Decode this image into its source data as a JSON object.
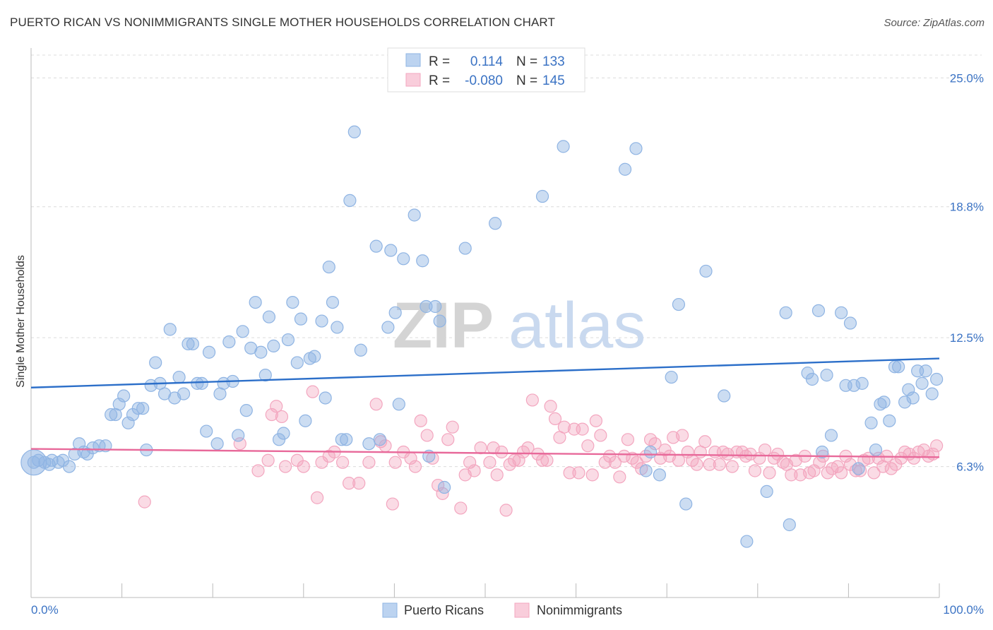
{
  "header": {
    "title": "PUERTO RICAN VS NONIMMIGRANTS SINGLE MOTHER HOUSEHOLDS CORRELATION CHART",
    "source": "Source: ZipAtlas.com"
  },
  "watermark": {
    "zip": "ZIP",
    "atlas": "atlas"
  },
  "chart_data": {
    "type": "scatter",
    "title": "PUERTO RICAN VS NONIMMIGRANTS SINGLE MOTHER HOUSEHOLDS CORRELATION CHART",
    "xlabel": "",
    "ylabel": "Single Mother Households",
    "xlim": [
      0,
      100
    ],
    "ylim": [
      0,
      26.3
    ],
    "x_tick_labels": {
      "min": "0.0%",
      "max": "100.0%"
    },
    "y_ticks": [
      {
        "value": 6.3,
        "label": "6.3%"
      },
      {
        "value": 12.5,
        "label": "12.5%"
      },
      {
        "value": 18.8,
        "label": "18.8%"
      },
      {
        "value": 25.0,
        "label": "25.0%"
      }
    ],
    "grid": true,
    "legend_position": "top-center",
    "series": [
      {
        "name": "Puerto Ricans",
        "color": "#8fb4e3",
        "line_color": "#2c6fc9",
        "R": "0.114",
        "N": "133",
        "trend": {
          "x": [
            0,
            100
          ],
          "y": [
            10.1,
            11.5
          ]
        },
        "points": [
          [
            0.3,
            6.5
          ],
          [
            0.8,
            6.6
          ],
          [
            1.5,
            6.5
          ],
          [
            2.0,
            6.4
          ],
          [
            2.3,
            6.6
          ],
          [
            3.0,
            6.5
          ],
          [
            3.5,
            6.6
          ],
          [
            4.2,
            6.3
          ],
          [
            4.8,
            6.9
          ],
          [
            5.3,
            7.4
          ],
          [
            5.8,
            7.0
          ],
          [
            6.2,
            6.9
          ],
          [
            6.8,
            7.2
          ],
          [
            7.5,
            7.3
          ],
          [
            8.2,
            7.3
          ],
          [
            8.8,
            8.8
          ],
          [
            9.3,
            8.8
          ],
          [
            9.7,
            9.3
          ],
          [
            10.2,
            9.7
          ],
          [
            10.7,
            8.4
          ],
          [
            11.2,
            8.8
          ],
          [
            11.8,
            9.1
          ],
          [
            12.3,
            9.1
          ],
          [
            12.7,
            7.1
          ],
          [
            13.2,
            10.2
          ],
          [
            13.7,
            11.3
          ],
          [
            14.2,
            10.3
          ],
          [
            14.7,
            9.8
          ],
          [
            15.3,
            12.9
          ],
          [
            15.8,
            9.6
          ],
          [
            16.3,
            10.6
          ],
          [
            16.8,
            9.8
          ],
          [
            17.3,
            12.2
          ],
          [
            17.8,
            12.2
          ],
          [
            18.3,
            10.3
          ],
          [
            18.8,
            10.3
          ],
          [
            19.3,
            8.0
          ],
          [
            19.6,
            11.8
          ],
          [
            20.5,
            7.4
          ],
          [
            20.8,
            9.8
          ],
          [
            21.2,
            10.3
          ],
          [
            21.8,
            12.3
          ],
          [
            22.2,
            10.4
          ],
          [
            22.8,
            7.8
          ],
          [
            23.3,
            12.8
          ],
          [
            23.7,
            9.0
          ],
          [
            24.2,
            12.0
          ],
          [
            24.7,
            14.2
          ],
          [
            25.3,
            11.8
          ],
          [
            25.8,
            10.7
          ],
          [
            26.2,
            13.5
          ],
          [
            26.7,
            12.1
          ],
          [
            27.3,
            7.6
          ],
          [
            27.8,
            7.9
          ],
          [
            28.3,
            12.4
          ],
          [
            28.8,
            14.2
          ],
          [
            29.3,
            11.3
          ],
          [
            29.7,
            13.4
          ],
          [
            30.2,
            8.5
          ],
          [
            30.7,
            11.5
          ],
          [
            31.2,
            11.6
          ],
          [
            32.0,
            13.3
          ],
          [
            32.4,
            9.6
          ],
          [
            32.8,
            15.9
          ],
          [
            33.2,
            14.2
          ],
          [
            33.7,
            13.0
          ],
          [
            34.2,
            7.6
          ],
          [
            34.7,
            7.6
          ],
          [
            35.1,
            19.1
          ],
          [
            35.6,
            22.4
          ],
          [
            36.3,
            11.9
          ],
          [
            37.2,
            7.4
          ],
          [
            38.0,
            16.9
          ],
          [
            38.4,
            7.6
          ],
          [
            39.3,
            13.0
          ],
          [
            39.6,
            16.7
          ],
          [
            40.1,
            13.7
          ],
          [
            40.5,
            9.3
          ],
          [
            41.0,
            16.3
          ],
          [
            42.2,
            18.4
          ],
          [
            43.1,
            16.2
          ],
          [
            43.5,
            14.0
          ],
          [
            43.8,
            6.8
          ],
          [
            44.5,
            14.0
          ],
          [
            45.0,
            13.3
          ],
          [
            45.5,
            5.3
          ],
          [
            47.8,
            16.8
          ],
          [
            51.1,
            18.0
          ],
          [
            56.3,
            19.3
          ],
          [
            58.6,
            21.7
          ],
          [
            65.4,
            20.6
          ],
          [
            66.6,
            21.6
          ],
          [
            67.7,
            6.1
          ],
          [
            68.2,
            7.0
          ],
          [
            69.2,
            5.9
          ],
          [
            70.5,
            10.6
          ],
          [
            71.3,
            14.1
          ],
          [
            72.1,
            4.5
          ],
          [
            74.3,
            15.7
          ],
          [
            76.3,
            9.7
          ],
          [
            78.8,
            2.7
          ],
          [
            81.0,
            5.1
          ],
          [
            83.1,
            13.7
          ],
          [
            83.5,
            3.5
          ],
          [
            85.5,
            10.8
          ],
          [
            86.0,
            10.5
          ],
          [
            86.7,
            13.8
          ],
          [
            87.1,
            7.0
          ],
          [
            87.6,
            10.7
          ],
          [
            88.1,
            7.8
          ],
          [
            89.2,
            13.7
          ],
          [
            89.7,
            10.2
          ],
          [
            90.2,
            13.2
          ],
          [
            90.6,
            10.2
          ],
          [
            91.1,
            6.2
          ],
          [
            91.5,
            10.3
          ],
          [
            92.5,
            8.4
          ],
          [
            93.0,
            7.1
          ],
          [
            93.5,
            9.3
          ],
          [
            93.9,
            9.4
          ],
          [
            94.5,
            8.5
          ],
          [
            95.1,
            11.1
          ],
          [
            95.5,
            11.1
          ],
          [
            96.2,
            9.4
          ],
          [
            96.6,
            10.0
          ],
          [
            97.1,
            9.6
          ],
          [
            97.6,
            10.9
          ],
          [
            98.1,
            10.3
          ],
          [
            98.5,
            10.9
          ],
          [
            99.2,
            9.8
          ],
          [
            99.7,
            10.5
          ]
        ]
      },
      {
        "name": "Nonimmigrants",
        "color": "#f3a6bf",
        "line_color": "#e8699a",
        "R": "-0.080",
        "N": "145",
        "trend": {
          "x": [
            0,
            100
          ],
          "y": [
            7.15,
            6.75
          ]
        },
        "points": [
          [
            12.5,
            4.6
          ],
          [
            23.0,
            7.4
          ],
          [
            25.0,
            6.1
          ],
          [
            26.1,
            6.6
          ],
          [
            26.5,
            8.8
          ],
          [
            27.0,
            9.2
          ],
          [
            27.6,
            8.7
          ],
          [
            28.0,
            6.3
          ],
          [
            29.3,
            6.6
          ],
          [
            30.0,
            6.3
          ],
          [
            31.0,
            9.9
          ],
          [
            31.5,
            4.8
          ],
          [
            32.0,
            6.5
          ],
          [
            32.8,
            6.8
          ],
          [
            33.4,
            7.0
          ],
          [
            34.3,
            6.5
          ],
          [
            35.0,
            5.5
          ],
          [
            36.1,
            5.5
          ],
          [
            37.2,
            6.5
          ],
          [
            38.0,
            9.3
          ],
          [
            38.5,
            7.5
          ],
          [
            39.0,
            7.3
          ],
          [
            39.8,
            4.5
          ],
          [
            40.1,
            6.5
          ],
          [
            41.0,
            7.0
          ],
          [
            41.8,
            6.7
          ],
          [
            42.3,
            6.3
          ],
          [
            42.9,
            8.5
          ],
          [
            43.6,
            7.8
          ],
          [
            44.2,
            6.7
          ],
          [
            44.8,
            5.4
          ],
          [
            45.3,
            5.0
          ],
          [
            45.9,
            7.6
          ],
          [
            46.4,
            8.2
          ],
          [
            47.3,
            4.3
          ],
          [
            47.8,
            5.9
          ],
          [
            48.3,
            6.5
          ],
          [
            48.8,
            6.1
          ],
          [
            49.5,
            7.2
          ],
          [
            50.5,
            6.5
          ],
          [
            50.9,
            7.2
          ],
          [
            51.3,
            5.9
          ],
          [
            51.8,
            7.0
          ],
          [
            52.3,
            4.2
          ],
          [
            52.7,
            6.4
          ],
          [
            53.2,
            6.6
          ],
          [
            53.7,
            6.6
          ],
          [
            54.2,
            7.0
          ],
          [
            54.7,
            7.2
          ],
          [
            55.2,
            9.5
          ],
          [
            55.8,
            6.9
          ],
          [
            56.3,
            6.6
          ],
          [
            56.8,
            6.6
          ],
          [
            57.2,
            9.2
          ],
          [
            57.7,
            8.6
          ],
          [
            58.2,
            7.7
          ],
          [
            58.7,
            8.2
          ],
          [
            59.3,
            6.0
          ],
          [
            59.8,
            8.1
          ],
          [
            60.3,
            6.0
          ],
          [
            60.7,
            8.1
          ],
          [
            61.3,
            7.3
          ],
          [
            61.8,
            5.9
          ],
          [
            62.2,
            8.5
          ],
          [
            62.7,
            7.8
          ],
          [
            63.2,
            6.5
          ],
          [
            63.7,
            6.8
          ],
          [
            64.3,
            6.5
          ],
          [
            64.8,
            5.8
          ],
          [
            65.3,
            6.8
          ],
          [
            65.7,
            7.6
          ],
          [
            66.2,
            6.7
          ],
          [
            66.7,
            6.5
          ],
          [
            67.2,
            6.2
          ],
          [
            67.7,
            6.8
          ],
          [
            68.2,
            7.6
          ],
          [
            68.7,
            7.4
          ],
          [
            69.3,
            6.7
          ],
          [
            69.8,
            7.1
          ],
          [
            70.3,
            6.8
          ],
          [
            70.7,
            7.7
          ],
          [
            71.3,
            6.6
          ],
          [
            71.7,
            7.8
          ],
          [
            72.3,
            7.0
          ],
          [
            72.8,
            6.6
          ],
          [
            73.3,
            6.4
          ],
          [
            73.7,
            7.0
          ],
          [
            74.2,
            7.5
          ],
          [
            74.7,
            6.4
          ],
          [
            75.3,
            7.0
          ],
          [
            75.8,
            6.4
          ],
          [
            76.2,
            7.0
          ],
          [
            76.7,
            6.9
          ],
          [
            77.2,
            6.3
          ],
          [
            77.7,
            7.0
          ],
          [
            78.3,
            7.0
          ],
          [
            78.7,
            6.8
          ],
          [
            79.2,
            6.9
          ],
          [
            79.7,
            6.1
          ],
          [
            80.2,
            6.7
          ],
          [
            80.8,
            7.1
          ],
          [
            81.3,
            6.0
          ],
          [
            81.8,
            6.7
          ],
          [
            82.2,
            6.9
          ],
          [
            82.8,
            6.5
          ],
          [
            83.2,
            6.4
          ],
          [
            83.7,
            5.9
          ],
          [
            84.2,
            6.6
          ],
          [
            84.7,
            5.9
          ],
          [
            85.2,
            6.8
          ],
          [
            85.7,
            6.0
          ],
          [
            86.2,
            6.1
          ],
          [
            86.8,
            6.5
          ],
          [
            87.2,
            6.8
          ],
          [
            87.7,
            6.0
          ],
          [
            88.2,
            6.2
          ],
          [
            88.8,
            6.3
          ],
          [
            89.2,
            6.0
          ],
          [
            89.7,
            6.8
          ],
          [
            90.2,
            6.4
          ],
          [
            90.8,
            6.1
          ],
          [
            91.3,
            6.1
          ],
          [
            91.7,
            6.6
          ],
          [
            92.2,
            6.7
          ],
          [
            92.8,
            6.0
          ],
          [
            93.3,
            6.7
          ],
          [
            93.8,
            6.3
          ],
          [
            94.2,
            6.8
          ],
          [
            94.7,
            6.2
          ],
          [
            95.2,
            6.4
          ],
          [
            95.8,
            6.7
          ],
          [
            96.2,
            7.0
          ],
          [
            96.7,
            6.9
          ],
          [
            97.2,
            6.7
          ],
          [
            97.7,
            7.0
          ],
          [
            98.3,
            7.1
          ],
          [
            98.8,
            6.8
          ],
          [
            99.3,
            6.9
          ],
          [
            99.7,
            7.3
          ]
        ]
      }
    ],
    "bubble": {
      "series": "Puerto Ricans",
      "x": 0.3,
      "y": 6.5
    }
  }
}
